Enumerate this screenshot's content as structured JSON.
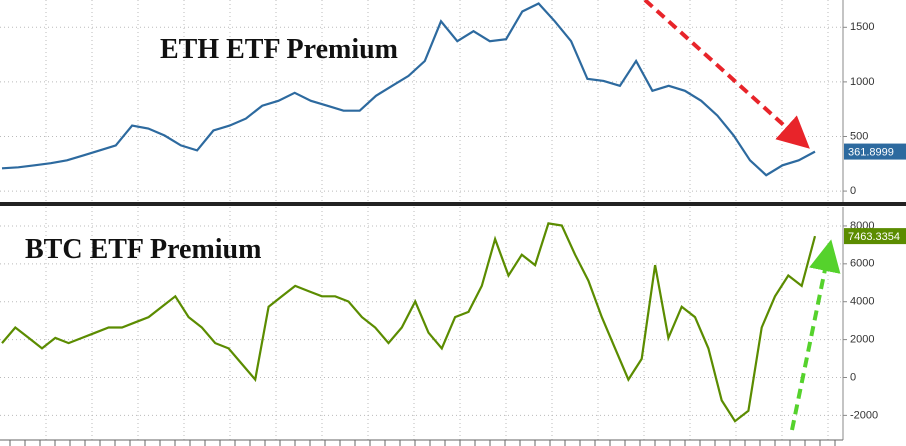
{
  "chart_data": [
    {
      "type": "line",
      "title": "ETH ETF Premium",
      "grid": true,
      "ylim": [
        -100,
        1750
      ],
      "yticks": [
        0,
        500,
        1000,
        1500
      ],
      "series": [
        {
          "color": "#2d6a9f",
          "values": [
            209,
            218,
            236,
            255,
            282,
            327,
            373,
            418,
            600,
            573,
            509,
            418,
            373,
            555,
            600,
            664,
            782,
            827,
            900,
            827,
            782,
            736,
            736,
            873,
            964,
            1055,
            1191,
            1555,
            1373,
            1464,
            1373,
            1391,
            1645,
            1718,
            1555,
            1373,
            1027,
            1009,
            964,
            1191,
            918,
            964,
            918,
            827,
            691,
            509,
            282,
            145,
            236,
            282,
            361.8999
          ]
        }
      ]
    },
    {
      "type": "line",
      "title": "BTC ETF Premium",
      "grid": true,
      "ylim": [
        -3300,
        9000
      ],
      "yticks": [
        -2000,
        0,
        2000,
        4000,
        6000,
        8000
      ],
      "series": [
        {
          "color": "#5b8c00",
          "values": [
            1813,
            2637,
            2088,
            1538,
            2088,
            1813,
            2088,
            2363,
            2637,
            2637,
            2912,
            3187,
            3736,
            4286,
            3187,
            2637,
            1813,
            1538,
            714,
            -110,
            3736,
            4286,
            4835,
            4560,
            4286,
            4286,
            4011,
            3187,
            2637,
            1813,
            2637,
            4011,
            2363,
            1538,
            3187,
            3462,
            4835,
            7308,
            5385,
            6484,
            5934,
            8132,
            8022,
            6484,
            5110,
            3187,
            1538,
            -110,
            989,
            5934,
            2088,
            3736,
            3187,
            1538,
            -1209,
            -2308,
            -1758,
            2637,
            4286,
            5385,
            4835,
            7463.3354
          ]
        }
      ]
    }
  ]
}
